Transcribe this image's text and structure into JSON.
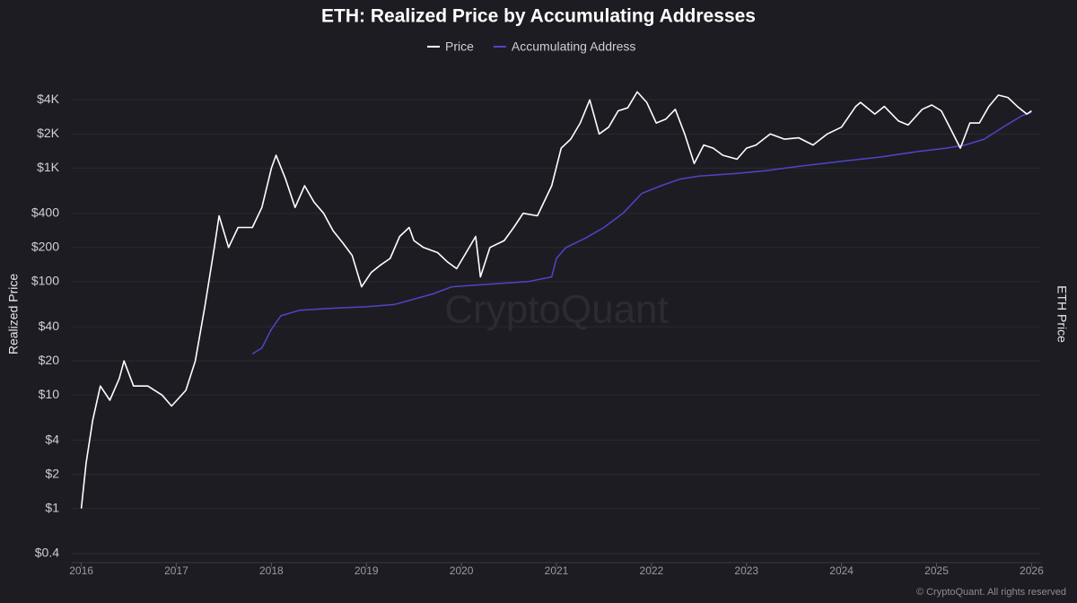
{
  "chart_data": {
    "type": "line",
    "title": "ETH: Realized Price by Accumulating Addresses",
    "y_label": "Realized Price",
    "y2_label": "ETH Price",
    "watermark": "CryptoQuant",
    "footer": "© CryptoQuant. All rights reserved",
    "log_y": true,
    "grid": true,
    "legend": "top",
    "xlim": [
      2015.9,
      2026.1
    ],
    "xticks": [
      2016,
      2017,
      2018,
      2019,
      2020,
      2021,
      2022,
      2023,
      2024,
      2025,
      2026
    ],
    "ylim": [
      0.4,
      6000
    ],
    "yticks": [
      {
        "value": 0.4,
        "label": "$0.4"
      },
      {
        "value": 1,
        "label": "$1"
      },
      {
        "value": 2,
        "label": "$2"
      },
      {
        "value": 4,
        "label": "$4"
      },
      {
        "value": 10,
        "label": "$10"
      },
      {
        "value": 20,
        "label": "$20"
      },
      {
        "value": 40,
        "label": "$40"
      },
      {
        "value": 100,
        "label": "$100"
      },
      {
        "value": 200,
        "label": "$200"
      },
      {
        "value": 400,
        "label": "$400"
      },
      {
        "value": 1000,
        "label": "$1K"
      },
      {
        "value": 2000,
        "label": "$2K"
      },
      {
        "value": 4000,
        "label": "$4K"
      }
    ],
    "series": [
      {
        "name": "Price",
        "color": "#ffffff",
        "x": [
          2016.0,
          2016.05,
          2016.12,
          2016.2,
          2016.3,
          2016.4,
          2016.45,
          2016.55,
          2016.7,
          2016.85,
          2016.95,
          2017.1,
          2017.2,
          2017.3,
          2017.4,
          2017.45,
          2017.55,
          2017.65,
          2017.8,
          2017.9,
          2018.0,
          2018.05,
          2018.15,
          2018.25,
          2018.35,
          2018.45,
          2018.55,
          2018.65,
          2018.75,
          2018.85,
          2018.95,
          2019.05,
          2019.15,
          2019.25,
          2019.35,
          2019.45,
          2019.5,
          2019.6,
          2019.75,
          2019.85,
          2019.95,
          2020.05,
          2020.15,
          2020.2,
          2020.3,
          2020.45,
          2020.55,
          2020.65,
          2020.8,
          2020.95,
          2021.05,
          2021.15,
          2021.25,
          2021.35,
          2021.45,
          2021.55,
          2021.65,
          2021.75,
          2021.85,
          2021.95,
          2022.05,
          2022.15,
          2022.25,
          2022.35,
          2022.45,
          2022.55,
          2022.65,
          2022.75,
          2022.9,
          2023.0,
          2023.1,
          2023.25,
          2023.4,
          2023.55,
          2023.7,
          2023.85,
          2024.0,
          2024.15,
          2024.2,
          2024.35,
          2024.45,
          2024.6,
          2024.7,
          2024.85,
          2024.95,
          2025.05,
          2025.15,
          2025.25,
          2025.35,
          2025.45,
          2025.55,
          2025.65,
          2025.75,
          2025.85,
          2025.95,
          2026.0
        ],
        "values": [
          1.0,
          2.5,
          6,
          12,
          9,
          14,
          20,
          12,
          12,
          10,
          8,
          11,
          20,
          60,
          200,
          380,
          200,
          300,
          300,
          450,
          1000,
          1300,
          800,
          450,
          700,
          500,
          400,
          280,
          220,
          170,
          90,
          120,
          140,
          160,
          250,
          300,
          230,
          200,
          180,
          150,
          130,
          180,
          250,
          110,
          200,
          230,
          300,
          400,
          380,
          700,
          1500,
          1800,
          2500,
          4000,
          2000,
          2300,
          3200,
          3400,
          4700,
          3800,
          2500,
          2700,
          3300,
          2000,
          1100,
          1600,
          1500,
          1300,
          1200,
          1500,
          1600,
          2000,
          1800,
          1850,
          1600,
          2000,
          2300,
          3500,
          3800,
          3000,
          3500,
          2600,
          2400,
          3300,
          3600,
          3200,
          2200,
          1500,
          2500,
          2500,
          3500,
          4400,
          4200,
          3500,
          3000,
          3200
        ]
      },
      {
        "name": "Accumulating Address",
        "color": "#4f45c9",
        "x": [
          2017.8,
          2017.9,
          2018.0,
          2018.1,
          2018.3,
          2018.6,
          2019.0,
          2019.3,
          2019.5,
          2019.7,
          2019.9,
          2020.3,
          2020.7,
          2020.95,
          2021.0,
          2021.1,
          2021.3,
          2021.5,
          2021.7,
          2021.9,
          2022.1,
          2022.3,
          2022.5,
          2022.9,
          2023.2,
          2023.6,
          2024.0,
          2024.4,
          2024.8,
          2025.1,
          2025.3,
          2025.5,
          2025.7,
          2025.9,
          2026.0
        ],
        "values": [
          23,
          26,
          38,
          50,
          56,
          58,
          60,
          63,
          70,
          78,
          90,
          95,
          100,
          110,
          160,
          200,
          240,
          300,
          400,
          600,
          700,
          800,
          850,
          900,
          950,
          1050,
          1150,
          1250,
          1400,
          1500,
          1600,
          1800,
          2300,
          2900,
          3100
        ]
      }
    ]
  }
}
